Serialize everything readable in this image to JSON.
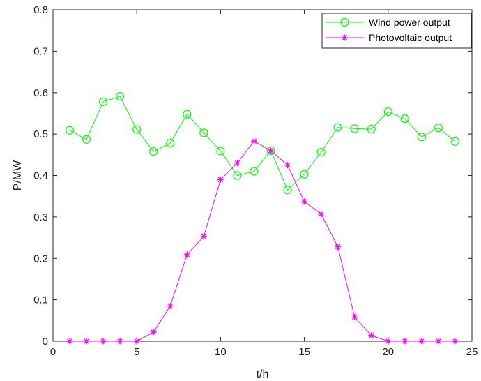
{
  "chart_data": {
    "type": "line",
    "title": "",
    "xlabel": "t/h",
    "ylabel": "P/MW",
    "xlim": [
      0,
      25
    ],
    "ylim": [
      0,
      0.8
    ],
    "x_ticks": [
      0,
      5,
      10,
      15,
      20,
      25
    ],
    "y_ticks": [
      0,
      0.1,
      0.2,
      0.3,
      0.4,
      0.5,
      0.6,
      0.7,
      0.8
    ],
    "y_tick_labels": [
      "0",
      "0.1",
      "0.2",
      "0.3",
      "0.4",
      "0.5",
      "0.6",
      "0.7",
      "0.8"
    ],
    "grid": false,
    "legend_position": "top-right",
    "x": [
      1,
      2,
      3,
      4,
      5,
      6,
      7,
      8,
      9,
      10,
      11,
      12,
      13,
      14,
      15,
      16,
      17,
      18,
      19,
      20,
      21,
      22,
      23,
      24
    ],
    "series": [
      {
        "name": "Wind power output",
        "color": "#00ff00",
        "marker": "circle",
        "values": [
          0.509,
          0.487,
          0.578,
          0.591,
          0.511,
          0.458,
          0.478,
          0.548,
          0.503,
          0.459,
          0.4,
          0.41,
          0.46,
          0.365,
          0.403,
          0.456,
          0.516,
          0.513,
          0.512,
          0.554,
          0.537,
          0.493,
          0.515,
          0.482
        ]
      },
      {
        "name": "Photovoltaic output",
        "color": "#ff00ff",
        "marker": "asterisk",
        "values": [
          0,
          0,
          0,
          0,
          0,
          0.022,
          0.085,
          0.209,
          0.253,
          0.39,
          0.43,
          0.483,
          0.46,
          0.425,
          0.337,
          0.307,
          0.228,
          0.058,
          0.014,
          0,
          0,
          0,
          0,
          0
        ]
      }
    ]
  }
}
